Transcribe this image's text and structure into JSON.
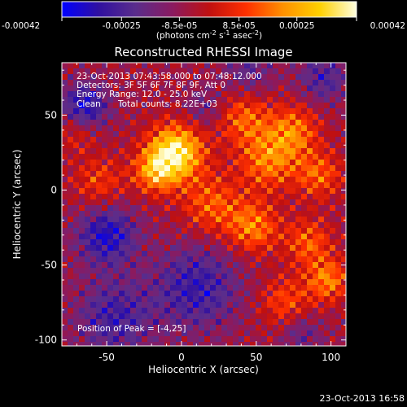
{
  "colorbar": {
    "ticks": [
      {
        "value": -0.00042,
        "label": "-0.00042"
      },
      {
        "value": -0.00025,
        "label": "-0.00025"
      },
      {
        "value": -8.5e-05,
        "label": "-8.5e-05"
      },
      {
        "value": 8.5e-05,
        "label": "8.5e-05"
      },
      {
        "value": 0.00025,
        "label": "0.00025"
      },
      {
        "value": 0.00042,
        "label": "0.00042"
      }
    ],
    "range": [
      -0.00042,
      0.00042
    ],
    "units_main": "(photons cm",
    "units_exp1": "-2",
    "units_mid": " s",
    "units_exp2": "-1",
    "units_tail": " asec",
    "units_exp3": "-2",
    "units_close": ")"
  },
  "annotations": {
    "time_range": "23-Oct-2013 07:43:58.000 to 07:48:12.000",
    "detectors": "Detectors: 3F 5F 6F 7F 8F 9F, Att 0",
    "energy": "Energy Range: 12.0 - 25.0 keV",
    "method": "Clean",
    "counts": "Total counts: 8.22E+03",
    "peak": "Position of Peak = [-4,25]"
  },
  "timestamp": "23-Oct-2013 16:58",
  "chart_data": {
    "type": "heatmap",
    "title": "Reconstructed RHESSI Image",
    "xlabel": "Heliocentric X (arcsec)",
    "ylabel": "Heliocentric Y (arcsec)",
    "xlim": [
      -80,
      110
    ],
    "ylim": [
      -104,
      85
    ],
    "xticks": [
      {
        "value": -50,
        "label": "-50"
      },
      {
        "value": 0,
        "label": "0"
      },
      {
        "value": 50,
        "label": "50"
      },
      {
        "value": 100,
        "label": "100"
      }
    ],
    "yticks": [
      {
        "value": -100,
        "label": "-100"
      },
      {
        "value": -50,
        "label": "-50"
      },
      {
        "value": 0,
        "label": "0"
      },
      {
        "value": 50,
        "label": "50"
      }
    ],
    "peak_position": [
      -4,
      25
    ],
    "colormap": [
      "#0000ff",
      "#3010a0",
      "#5a2d8c",
      "#8a1a60",
      "#c01010",
      "#ff3000",
      "#ff9000",
      "#ffd000",
      "#ffffe0"
    ],
    "blobs": [
      {
        "x": -4,
        "y": 25,
        "amp": 1.0,
        "sigma": 13
      },
      {
        "x": -18,
        "y": 12,
        "amp": 0.55,
        "sigma": 10
      },
      {
        "x": 58,
        "y": 20,
        "amp": 0.55,
        "sigma": 14
      },
      {
        "x": 42,
        "y": 48,
        "amp": 0.45,
        "sigma": 12
      },
      {
        "x": 75,
        "y": 40,
        "amp": 0.5,
        "sigma": 12
      },
      {
        "x": 92,
        "y": 10,
        "amp": 0.45,
        "sigma": 11
      },
      {
        "x": 20,
        "y": -10,
        "amp": 0.45,
        "sigma": 14
      },
      {
        "x": 48,
        "y": -25,
        "amp": 0.55,
        "sigma": 12
      },
      {
        "x": 85,
        "y": -35,
        "amp": 0.45,
        "sigma": 11
      },
      {
        "x": 98,
        "y": -60,
        "amp": 0.55,
        "sigma": 10
      },
      {
        "x": 70,
        "y": -75,
        "amp": 0.4,
        "sigma": 12
      },
      {
        "x": -55,
        "y": 5,
        "amp": 0.35,
        "sigma": 12
      },
      {
        "x": -70,
        "y": 40,
        "amp": 0.3,
        "sigma": 10
      },
      {
        "x": -50,
        "y": -30,
        "amp": -0.6,
        "sigma": 14
      },
      {
        "x": -65,
        "y": 55,
        "amp": -0.65,
        "sigma": 11
      },
      {
        "x": 10,
        "y": -65,
        "amp": -0.5,
        "sigma": 20
      },
      {
        "x": -45,
        "y": -85,
        "amp": -0.45,
        "sigma": 18
      },
      {
        "x": 95,
        "y": 75,
        "amp": -0.4,
        "sigma": 12
      },
      {
        "x": 45,
        "y": 80,
        "amp": -0.3,
        "sigma": 12
      },
      {
        "x": 80,
        "y": -95,
        "amp": -0.3,
        "sigma": 10
      },
      {
        "x": 15,
        "y": 55,
        "amp": -0.25,
        "sigma": 9
      }
    ]
  }
}
